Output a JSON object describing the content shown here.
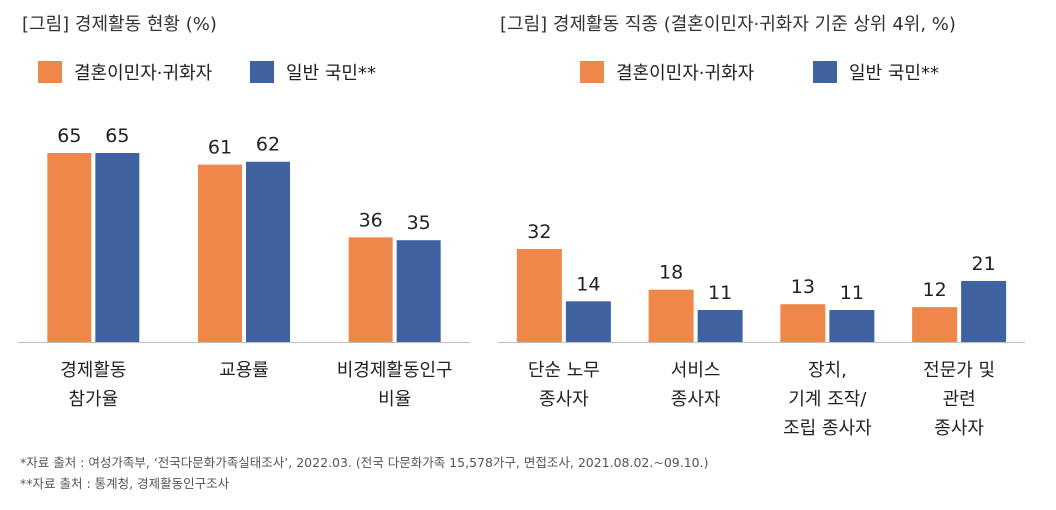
{
  "chart_data": [
    {
      "type": "bar",
      "title": "[그림] 경제활동 현황 (%)",
      "legend": [
        "결혼이민자·귀화자",
        "일반 국민**"
      ],
      "categories": [
        [
          "경제활동",
          "참가율"
        ],
        [
          "교용률"
        ],
        [
          "비경제활동인구",
          "비율"
        ]
      ],
      "series": [
        {
          "name": "결혼이민자·귀화자",
          "values": [
            65,
            61,
            36
          ],
          "color": "#F0874A"
        },
        {
          "name": "일반 국민**",
          "values": [
            65,
            62,
            35
          ],
          "color": "#3F63A0"
        }
      ],
      "ylim": [
        0,
        80
      ]
    },
    {
      "type": "bar",
      "title": "[그림] 경제활동 직종 (결혼이민자·귀화자 기준 상위 4위, %)",
      "legend": [
        "결혼이민자·귀화자",
        "일반 국민**"
      ],
      "categories": [
        [
          "단순 노무",
          "종사자"
        ],
        [
          "서비스",
          "종사자"
        ],
        [
          "장치,",
          "기계 조작/",
          "조립 종사자"
        ],
        [
          "전문가 및",
          "관련",
          "종사자"
        ]
      ],
      "series": [
        {
          "name": "결혼이민자·귀화자",
          "values": [
            32,
            18,
            13,
            12
          ],
          "color": "#F0874A"
        },
        {
          "name": "일반 국민**",
          "values": [
            14,
            11,
            11,
            21
          ],
          "color": "#3F63A0"
        }
      ],
      "ylim": [
        0,
        80
      ]
    }
  ],
  "footnotes": [
    "*자료 출처 : 여성가족부, ‘전국다문화가족실태조사’, 2022.03. (전국 다문화가족 15,578가구, 면접조사, 2021.08.02.~09.10.)",
    "**자료 출처 : 통계청, 경제활동인구조사"
  ]
}
